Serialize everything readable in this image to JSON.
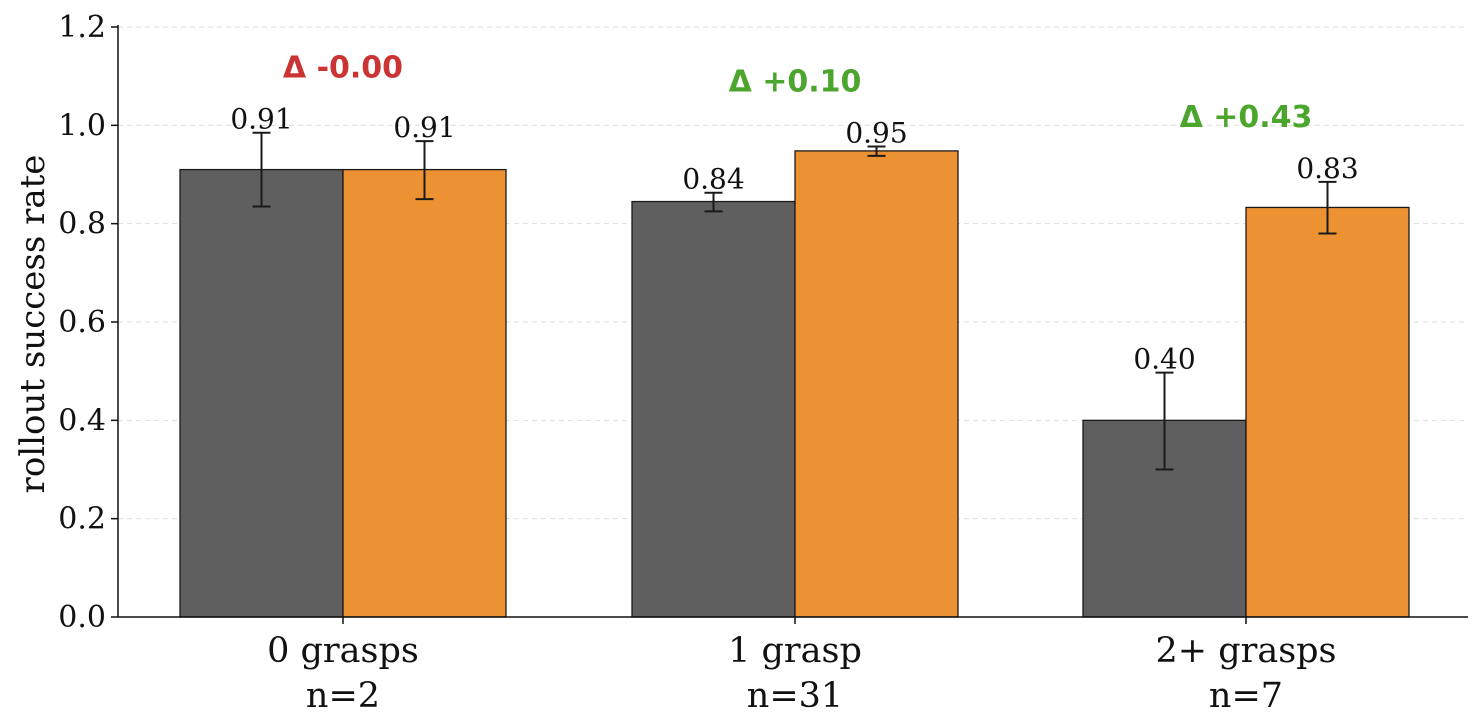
{
  "chart_data": {
    "type": "bar",
    "ylabel": "rollout success rate",
    "ylim": [
      0,
      1.2
    ],
    "yticks": [
      "0.0",
      "0.2",
      "0.4",
      "0.6",
      "0.8",
      "1.0",
      "1.2"
    ],
    "grid": "horizontal-dashed",
    "categories": [
      {
        "label": "0 grasps",
        "n": "n=2"
      },
      {
        "label": "1 grasp",
        "n": "n=31"
      },
      {
        "label": "2+ grasps",
        "n": "n=7"
      }
    ],
    "series": [
      {
        "color": "#5f5f5f",
        "values": [
          0.91,
          0.845,
          0.4
        ],
        "value_labels": [
          "0.91",
          "0.84",
          "0.40"
        ],
        "err_low": [
          0.835,
          0.825,
          0.3
        ],
        "err_high": [
          0.985,
          0.863,
          0.497
        ]
      },
      {
        "color": "#ec9233",
        "values": [
          0.91,
          0.948,
          0.833
        ],
        "value_labels": [
          "0.91",
          "0.95",
          "0.83"
        ],
        "err_low": [
          0.85,
          0.938,
          0.78
        ],
        "err_high": [
          0.968,
          0.957,
          0.885
        ]
      }
    ],
    "deltas": [
      {
        "text": "Δ -0.00",
        "color": "#cc3333"
      },
      {
        "text": "Δ +0.10",
        "color": "#4ca62e"
      },
      {
        "text": "Δ +0.43",
        "color": "#4ca62e"
      }
    ]
  }
}
